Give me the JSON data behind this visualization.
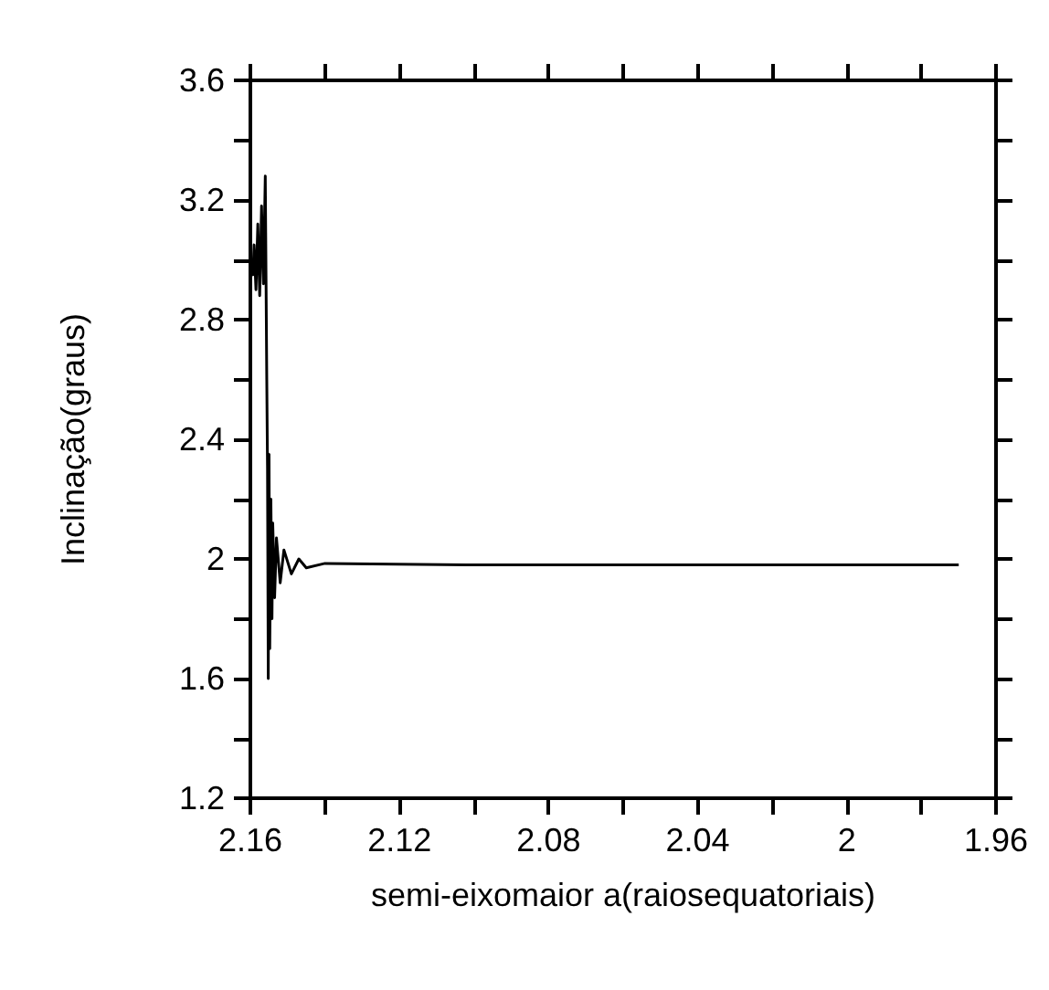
{
  "chart_data": {
    "type": "line",
    "xlabel": "semi-eixomaior a(raiosequatoriais)",
    "ylabel": "Inclinação(graus)",
    "x": [
      2.1595,
      2.1593,
      2.159,
      2.1585,
      2.158,
      2.1575,
      2.157,
      2.1565,
      2.156,
      2.1556,
      2.1554,
      2.1552,
      2.155,
      2.1548,
      2.1545,
      2.1542,
      2.154,
      2.1535,
      2.153,
      2.152,
      2.151,
      2.149,
      2.147,
      2.145,
      2.14,
      2.1,
      2.05,
      2.0,
      1.97
    ],
    "series": [
      {
        "color": "#000000",
        "values": [
          3.0,
          2.95,
          3.05,
          2.9,
          3.12,
          2.88,
          3.18,
          2.92,
          3.28,
          2.6,
          2.3,
          1.6,
          2.35,
          1.7,
          2.2,
          1.8,
          2.12,
          1.87,
          2.07,
          1.92,
          2.03,
          1.95,
          2.0,
          1.97,
          1.985,
          1.98,
          1.98,
          1.98,
          1.98
        ]
      }
    ],
    "xlim": [
      2.16,
      1.96
    ],
    "xticks": [
      2.16,
      {
        "value": 2.14,
        "label": null
      },
      2.12,
      {
        "value": 2.1,
        "label": null
      },
      2.08,
      {
        "value": 2.06,
        "label": null
      },
      2.04,
      {
        "value": 2.02,
        "label": null
      },
      2,
      {
        "value": 1.98,
        "label": null
      },
      1.96
    ],
    "ylim": [
      1.2,
      3.6
    ],
    "yticks": [
      1.2,
      {
        "value": 1.4,
        "label": null
      },
      1.6,
      {
        "value": 1.8,
        "label": null
      },
      2,
      {
        "value": 2.2,
        "label": null
      },
      2.4,
      {
        "value": 2.6,
        "label": null
      },
      2.8,
      {
        "value": 3.0,
        "label": null
      },
      3.2,
      {
        "value": 3.4,
        "label": null
      },
      3.6
    ],
    "grid": false,
    "legend": false,
    "marker": "none",
    "line_style": "solid"
  }
}
